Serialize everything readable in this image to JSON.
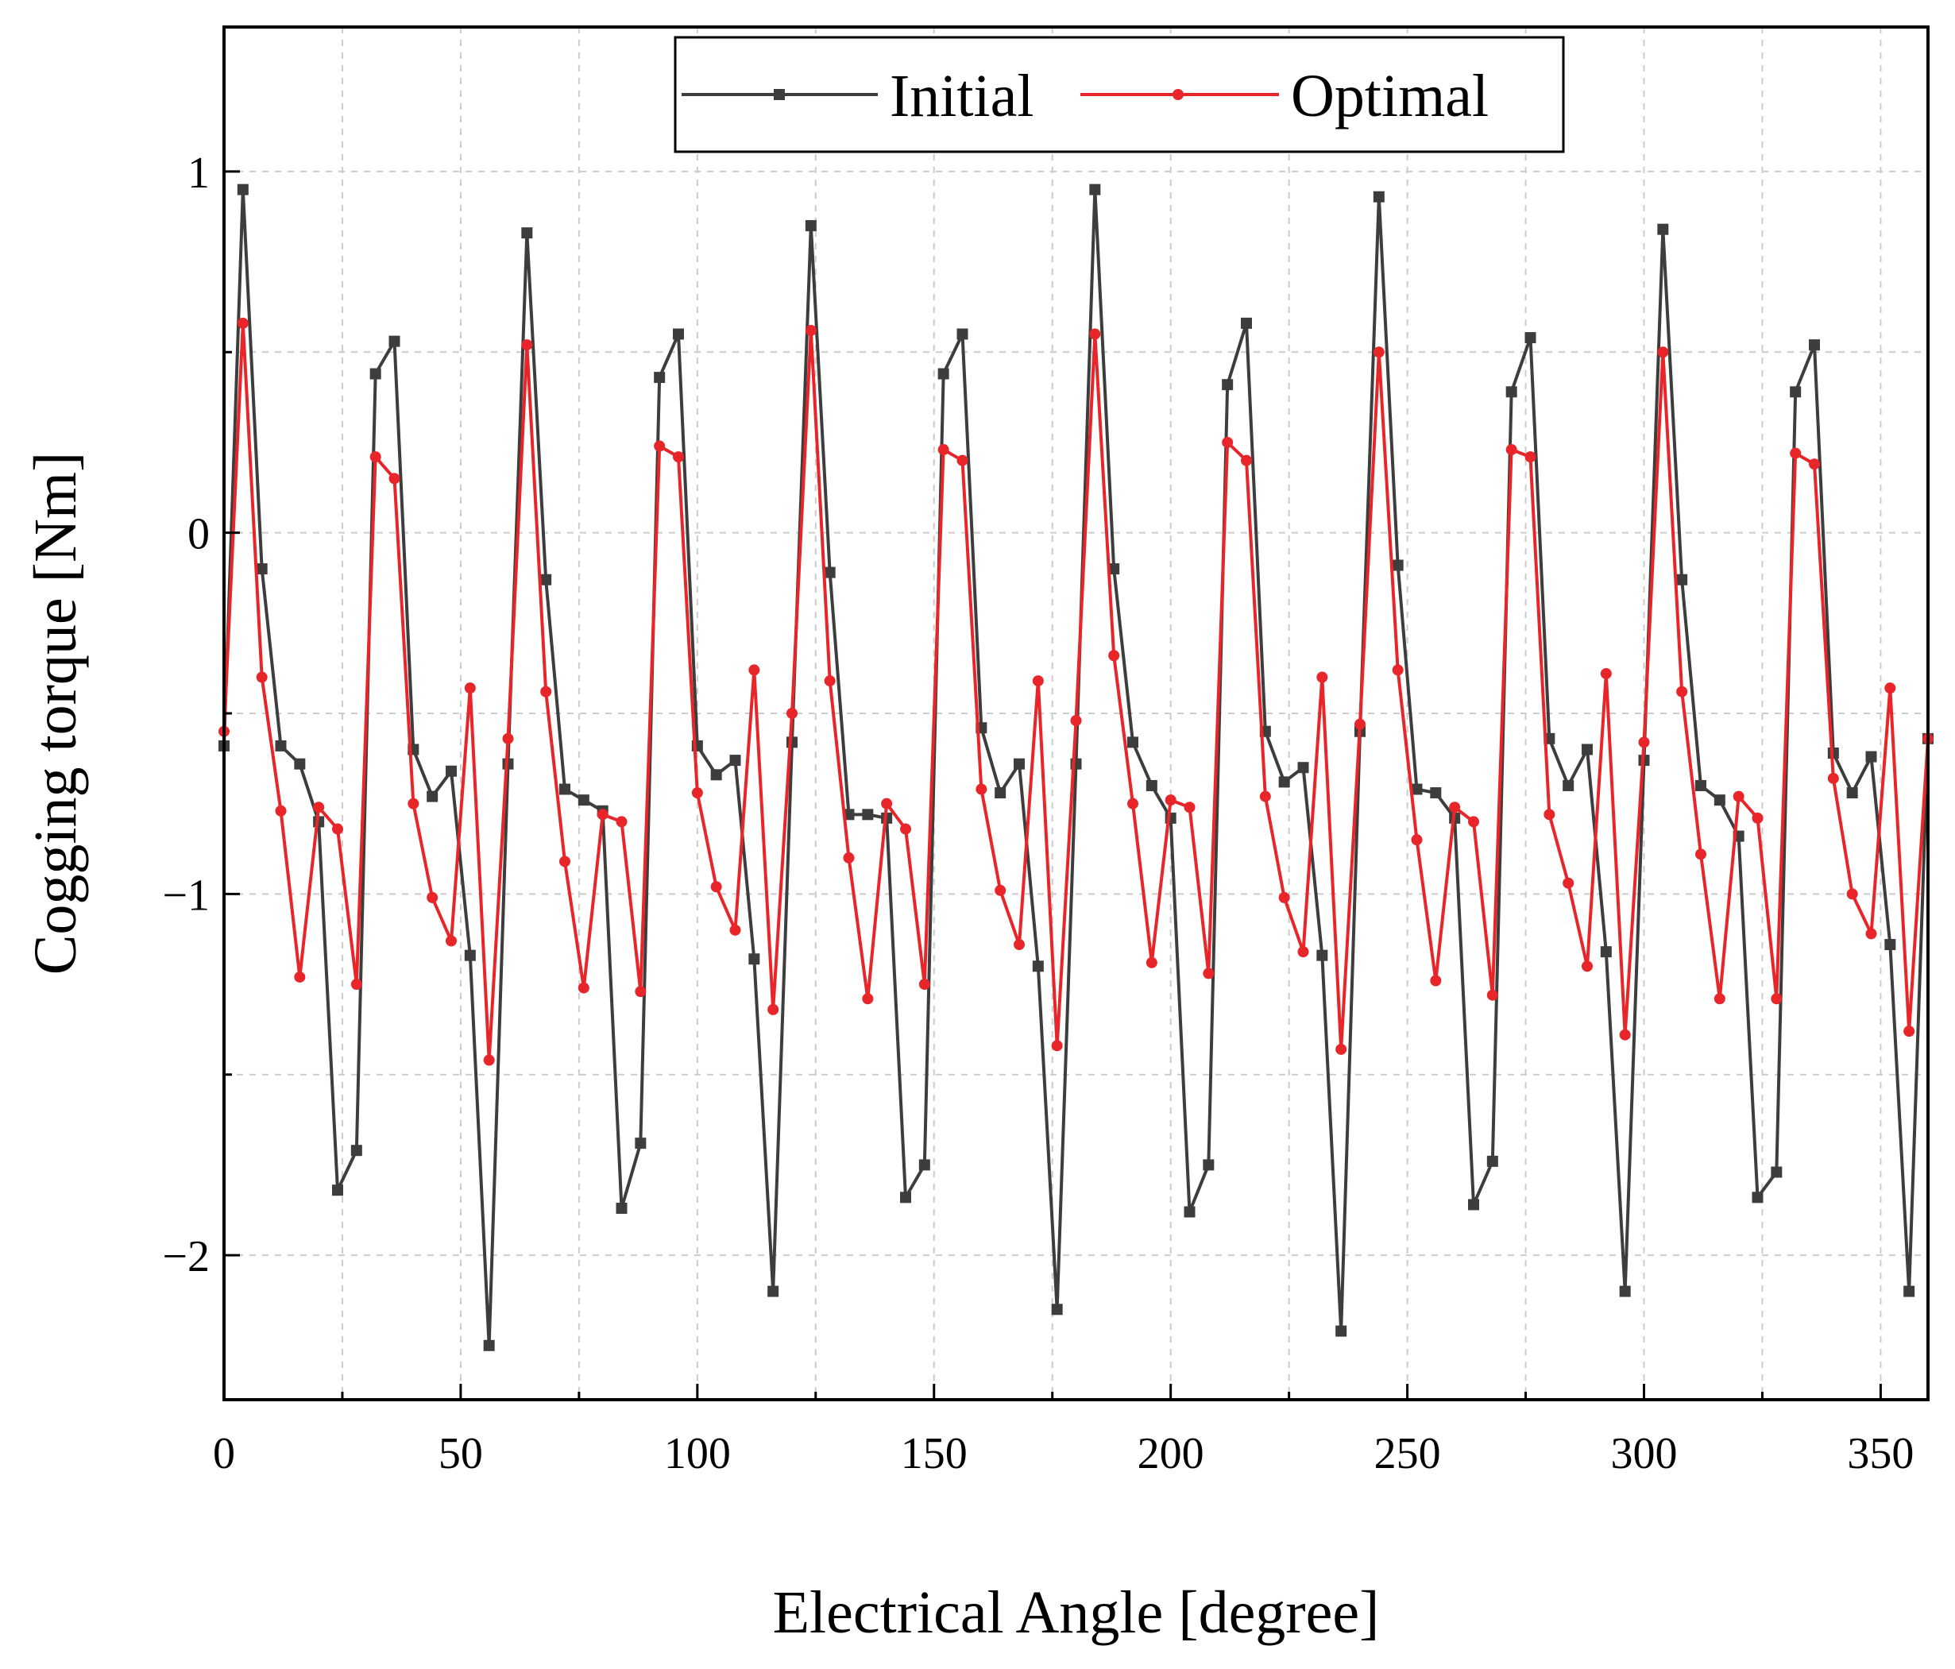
{
  "chart_data": {
    "type": "line",
    "title": "",
    "xlabel": "Electrical Angle [degree]",
    "ylabel": "Cogging torque [Nm]",
    "xlim": [
      0,
      360
    ],
    "ylim": [
      -2.4,
      1.4
    ],
    "x_ticks": [
      0,
      50,
      100,
      150,
      200,
      250,
      300,
      350
    ],
    "x_tick_labels": [
      "0",
      "50",
      "100",
      "150",
      "200",
      "250",
      "300",
      "350"
    ],
    "y_ticks": [
      1,
      0,
      -1,
      -2
    ],
    "y_tick_labels": [
      "1",
      "0",
      "−1",
      "−2"
    ],
    "grid": true,
    "legend_position": "top-center",
    "x": [
      0,
      4,
      8,
      12,
      16,
      20,
      24,
      28,
      32,
      36,
      40,
      44,
      48,
      52,
      56,
      60,
      64,
      68,
      72,
      76,
      80,
      84,
      88,
      92,
      96,
      100,
      104,
      108,
      112,
      116,
      120,
      124,
      128,
      132,
      136,
      140,
      144,
      148,
      152,
      156,
      160,
      164,
      168,
      172,
      176,
      180,
      184,
      188,
      192,
      196,
      200,
      204,
      208,
      212,
      216,
      220,
      224,
      228,
      232,
      236,
      240,
      244,
      248,
      252,
      256,
      260,
      264,
      268,
      272,
      276,
      280,
      284,
      288,
      292,
      296,
      300,
      304,
      308,
      312,
      316,
      320,
      324,
      328,
      332,
      336,
      340,
      344,
      348,
      352,
      356,
      360
    ],
    "series": [
      {
        "name": "Initial",
        "color": "#3d3d3d",
        "marker": "square",
        "values": [
          -0.59,
          0.95,
          -0.1,
          -0.59,
          -0.64,
          -0.8,
          -1.82,
          -1.71,
          0.44,
          0.53,
          -0.6,
          -0.73,
          -0.66,
          -1.17,
          -2.25,
          -0.64,
          0.83,
          -0.13,
          -0.71,
          -0.74,
          -0.77,
          -1.87,
          -1.69,
          0.43,
          0.55,
          -0.59,
          -0.67,
          -0.63,
          -1.18,
          -2.1,
          -0.58,
          0.85,
          -0.11,
          -0.78,
          -0.78,
          -0.79,
          -1.84,
          -1.75,
          0.44,
          0.55,
          -0.54,
          -0.72,
          -0.64,
          -1.2,
          -2.15,
          -0.64,
          0.95,
          -0.1,
          -0.58,
          -0.7,
          -0.79,
          -1.88,
          -1.75,
          0.41,
          0.58,
          -0.55,
          -0.69,
          -0.65,
          -1.17,
          -2.21,
          -0.55,
          0.93,
          -0.09,
          -0.71,
          -0.72,
          -0.79,
          -1.86,
          -1.74,
          0.39,
          0.54,
          -0.57,
          -0.7,
          -0.6,
          -1.16,
          -2.1,
          -0.63,
          0.84,
          -0.13,
          -0.7,
          -0.74,
          -0.84,
          -1.84,
          -1.77,
          0.39,
          0.52,
          -0.61,
          -0.72,
          -0.62,
          -1.14,
          -2.1,
          -0.57
        ]
      },
      {
        "name": "Optimal",
        "color": "#e8262a",
        "marker": "circle",
        "values": [
          -0.55,
          0.58,
          -0.4,
          -0.77,
          -1.23,
          -0.76,
          -0.82,
          -1.25,
          0.21,
          0.15,
          -0.75,
          -1.01,
          -1.13,
          -0.43,
          -1.46,
          -0.57,
          0.52,
          -0.44,
          -0.91,
          -1.26,
          -0.78,
          -0.8,
          -1.27,
          0.24,
          0.21,
          -0.72,
          -0.98,
          -1.1,
          -0.38,
          -1.32,
          -0.5,
          0.56,
          -0.41,
          -0.9,
          -1.29,
          -0.75,
          -0.82,
          -1.25,
          0.23,
          0.2,
          -0.71,
          -0.99,
          -1.14,
          -0.41,
          -1.42,
          -0.52,
          0.55,
          -0.34,
          -0.75,
          -1.19,
          -0.74,
          -0.76,
          -1.22,
          0.25,
          0.2,
          -0.73,
          -1.01,
          -1.16,
          -0.4,
          -1.43,
          -0.53,
          0.5,
          -0.38,
          -0.85,
          -1.24,
          -0.76,
          -0.8,
          -1.28,
          0.23,
          0.21,
          -0.78,
          -0.97,
          -1.2,
          -0.39,
          -1.39,
          -0.58,
          0.5,
          -0.44,
          -0.89,
          -1.29,
          -0.73,
          -0.79,
          -1.29,
          0.22,
          0.19,
          -0.68,
          -1.0,
          -1.11,
          -0.43,
          -1.38,
          -0.57
        ]
      }
    ]
  }
}
